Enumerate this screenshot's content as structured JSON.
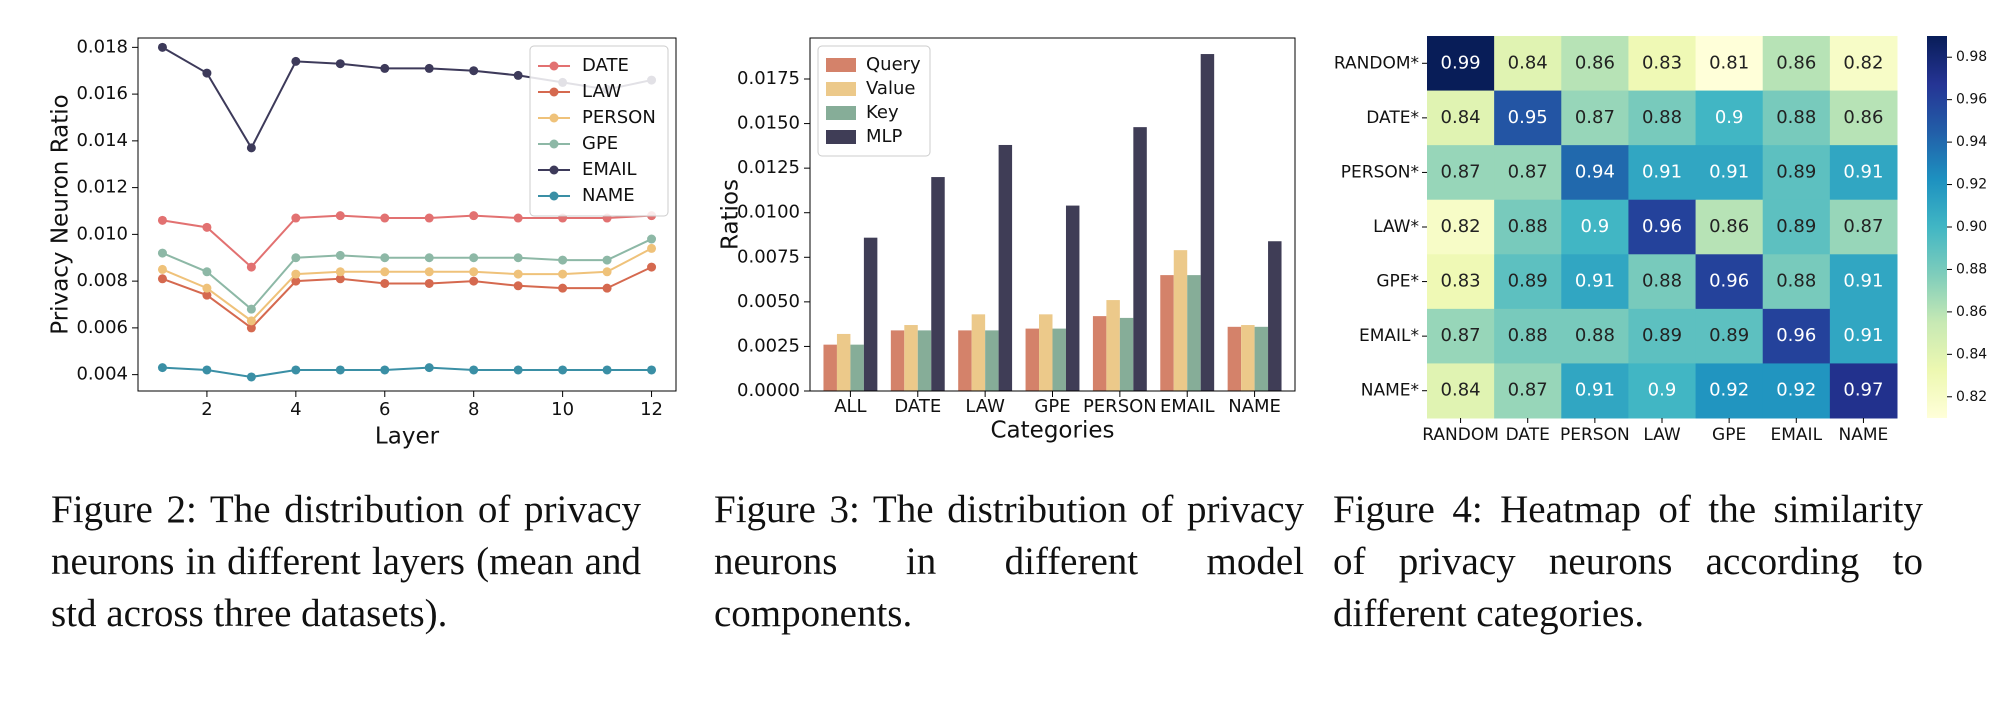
{
  "chart_data": [
    {
      "type": "line",
      "xlabel": "Layer",
      "ylabel": "Privacy Neuron Ratio",
      "x": [
        1,
        2,
        3,
        4,
        5,
        6,
        7,
        8,
        9,
        10,
        11,
        12
      ],
      "xlim": [
        0.45,
        12.55
      ],
      "xticks": [
        2,
        4,
        6,
        8,
        10,
        12
      ],
      "ylim": [
        0.0033,
        0.0184
      ],
      "yticks": [
        0.004,
        0.006,
        0.008,
        {
          "value": 0.01,
          "label": "0.010"
        },
        0.012,
        0.014,
        0.016,
        0.018
      ],
      "legend": "upper right",
      "series": [
        {
          "name": "DATE",
          "color": "#e27171",
          "values": [
            0.0106,
            0.0103,
            0.0086,
            0.0107,
            0.0108,
            0.0107,
            0.0107,
            0.0108,
            0.0107,
            0.0107,
            0.0107,
            0.0108
          ]
        },
        {
          "name": "LAW",
          "color": "#d5694f",
          "values": [
            0.0081,
            0.0074,
            0.006,
            0.008,
            0.0081,
            0.0079,
            0.0079,
            0.008,
            0.0078,
            0.0077,
            0.0077,
            0.0086
          ]
        },
        {
          "name": "PERSON",
          "color": "#efc27a",
          "values": [
            0.0085,
            0.0077,
            0.0063,
            0.0083,
            0.0084,
            0.0084,
            0.0084,
            0.0084,
            0.0083,
            0.0083,
            0.0084,
            0.0094
          ]
        },
        {
          "name": "GPE",
          "color": "#8db8a6",
          "values": [
            0.0092,
            0.0084,
            0.0068,
            0.009,
            0.0091,
            0.009,
            0.009,
            0.009,
            0.009,
            0.0089,
            0.0089,
            0.0098
          ]
        },
        {
          "name": "EMAIL",
          "color": "#3d3a5a",
          "values": [
            0.018,
            0.0169,
            0.0137,
            0.0174,
            0.0173,
            0.0171,
            0.0171,
            0.017,
            0.0168,
            0.0165,
            0.0162,
            0.0166
          ]
        },
        {
          "name": "NAME",
          "color": "#3a8fa5",
          "values": [
            0.0043,
            0.0042,
            0.0039,
            0.0042,
            0.0042,
            0.0042,
            0.0043,
            0.0042,
            0.0042,
            0.0042,
            0.0042,
            0.0042
          ]
        }
      ]
    },
    {
      "type": "bar",
      "xlabel": "Categories",
      "ylabel": "Ratios",
      "categories": [
        "ALL",
        "DATE",
        "LAW",
        "GPE",
        "PERSON",
        "EMAIL",
        "NAME"
      ],
      "ylim": [
        0,
        0.0198
      ],
      "yticks": [
        {
          "value": 0,
          "label": "0.0000"
        },
        0.0025,
        {
          "value": 0.005,
          "label": "0.0050"
        },
        0.0075,
        {
          "value": 0.01,
          "label": "0.0100"
        },
        0.0125,
        {
          "value": 0.015,
          "label": "0.0150"
        },
        0.0175
      ],
      "legend": "upper left",
      "series": [
        {
          "name": "Query",
          "color": "#d4826a",
          "values": [
            0.0026,
            0.0034,
            0.0034,
            0.0035,
            0.0042,
            0.0065,
            0.0036
          ]
        },
        {
          "name": "Value",
          "color": "#ecc98a",
          "values": [
            0.0032,
            0.0037,
            0.0043,
            0.0043,
            0.0051,
            0.0079,
            0.0037
          ]
        },
        {
          "name": "Key",
          "color": "#86ad98",
          "values": [
            0.0026,
            0.0034,
            0.0034,
            0.0035,
            0.0041,
            0.0065,
            0.0036
          ]
        },
        {
          "name": "MLP",
          "color": "#3f3d56",
          "values": [
            0.0086,
            0.012,
            0.0138,
            0.0104,
            0.0148,
            0.0189,
            0.0084
          ]
        }
      ]
    },
    {
      "type": "heatmap",
      "colormap": "YlGnBu",
      "rows": [
        "RANDOM*",
        "DATE*",
        "PERSON*",
        "LAW*",
        "GPE*",
        "EMAIL*",
        "NAME*"
      ],
      "columns": [
        "RANDOM",
        "DATE",
        "PERSON",
        "LAW",
        "GPE",
        "EMAIL",
        "NAME"
      ],
      "values": [
        [
          0.99,
          0.84,
          0.86,
          0.83,
          0.81,
          0.86,
          0.82
        ],
        [
          0.84,
          0.95,
          0.87,
          0.88,
          0.9,
          0.88,
          0.86
        ],
        [
          0.87,
          0.87,
          0.94,
          0.91,
          0.91,
          0.89,
          0.91
        ],
        [
          0.82,
          0.88,
          0.9,
          0.96,
          0.86,
          0.89,
          0.87
        ],
        [
          0.83,
          0.89,
          0.91,
          0.88,
          0.96,
          0.88,
          0.91
        ],
        [
          0.87,
          0.88,
          0.88,
          0.89,
          0.89,
          0.96,
          0.91
        ],
        [
          0.84,
          0.87,
          0.91,
          0.9,
          0.92,
          0.92,
          0.97
        ]
      ],
      "vlim": [
        0.81,
        0.99
      ],
      "colorbar_ticks": [
        0.82,
        0.84,
        0.86,
        0.88,
        {
          "value": 0.9,
          "label": "0.90"
        },
        0.92,
        0.94,
        0.96,
        0.98
      ]
    }
  ],
  "captions": [
    "Figure 2: The distribution of privacy neurons in different layers (mean and std across three datasets).",
    "Figure 3: The distribution of privacy neurons in different model components.",
    "Figure 4: Heatmap of the similarity of privacy neurons according to different categories."
  ]
}
